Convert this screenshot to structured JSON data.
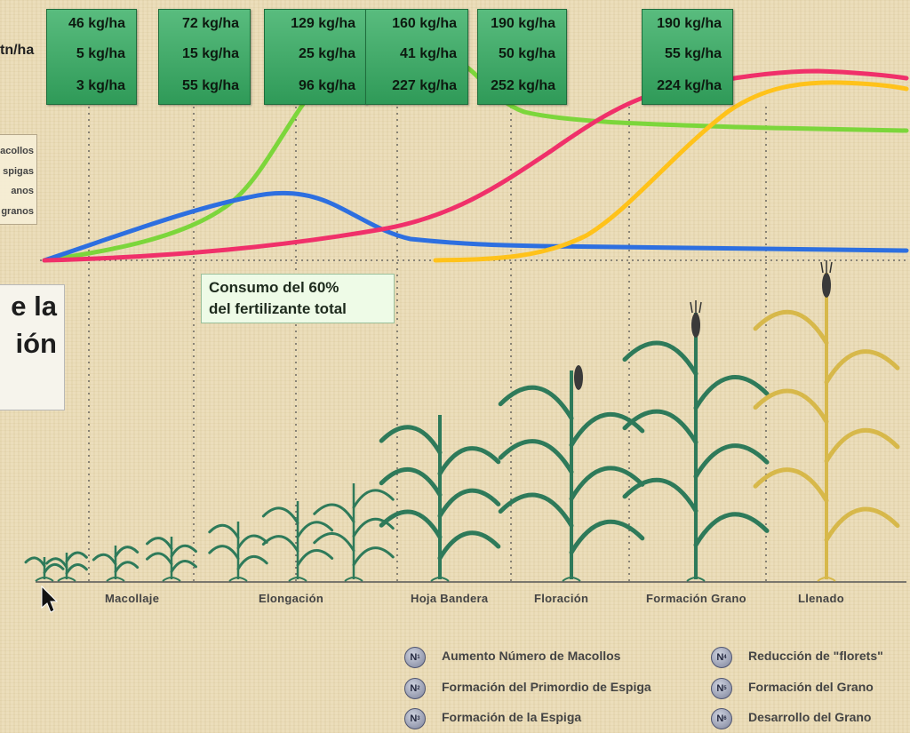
{
  "unit_label": "tn/ha",
  "kg_boxes": [
    {
      "values": [
        "46 kg/ha",
        "5 kg/ha",
        "3 kg/ha"
      ]
    },
    {
      "values": [
        "72 kg/ha",
        "15 kg/ha",
        "55 kg/ha"
      ]
    },
    {
      "values": [
        "129 kg/ha",
        "25 kg/ha",
        "96 kg/ha"
      ]
    },
    {
      "values": [
        "160 kg/ha",
        "41 kg/ha",
        "227 kg/ha"
      ]
    },
    {
      "values": [
        "190 kg/ha",
        "50 kg/ha",
        "252 kg/ha"
      ]
    },
    {
      "values": [
        "190 kg/ha",
        "55 kg/ha",
        "224 kg/ha"
      ]
    }
  ],
  "legend_left": [
    "acollos",
    "spigas",
    "anos",
    "granos"
  ],
  "title_lines": [
    "e la",
    "ión"
  ],
  "consumo_lines": [
    "Consumo del 60%",
    "del fertilizante total"
  ],
  "stages": [
    "Macollaje",
    "Elongación",
    "Hoja Bandera",
    "Floración",
    "Formación Grano",
    "Llenado"
  ],
  "bottom_legend": [
    {
      "icon": "nutrient-n-icon",
      "icon_text": "N",
      "icon_sub": "1",
      "label": "Aumento Número de Macollos"
    },
    {
      "icon": "nutrient-n-icon",
      "icon_text": "N",
      "icon_sub": "2",
      "label": "Formación del Primordio de Espiga"
    },
    {
      "icon": "nutrient-n-icon",
      "icon_text": "N",
      "icon_sub": "3",
      "label": "Formación de la Espiga"
    },
    {
      "icon": "nutrient-n-icon",
      "icon_text": "N",
      "icon_sub": "4",
      "label": "Reducción de \"florets\""
    },
    {
      "icon": "nutrient-n-icon",
      "icon_text": "N",
      "icon_sub": "5",
      "label": "Formación del Grano"
    },
    {
      "icon": "nutrient-n-icon",
      "icon_text": "N",
      "icon_sub": "6",
      "label": "Desarrollo del Grano"
    }
  ],
  "colors": {
    "box_green": "#3fa766",
    "curve_green": "#7cd63b",
    "curve_blue": "#2d6fe0",
    "curve_red": "#f0306a",
    "curve_yellow": "#ffc21a",
    "plant_green": "#2e7a5a",
    "plant_ripe": "#d7b84a"
  }
}
